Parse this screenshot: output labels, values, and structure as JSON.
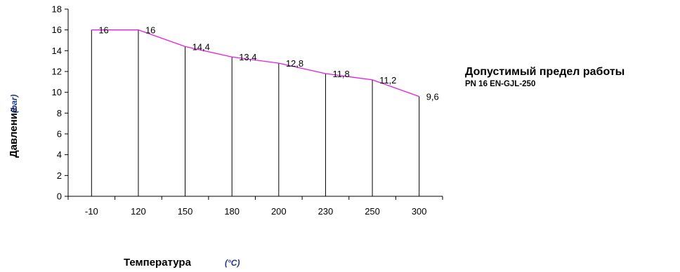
{
  "side_title": "Допустимый предел работы",
  "side_subtitle": "PN 16 EN-GJL-250",
  "chart_data": {
    "type": "line",
    "categories": [
      "-10",
      "120",
      "150",
      "180",
      "200",
      "230",
      "250",
      "300"
    ],
    "values": [
      16,
      16,
      14.4,
      13.4,
      12.8,
      11.8,
      11.2,
      9.6
    ],
    "data_labels": [
      "16",
      "16",
      "14,4",
      "13,4",
      "12,8",
      "11,8",
      "11,2",
      "9,6"
    ],
    "xlabel": "Температура",
    "xunit": "(°C)",
    "ylabel": "Давление",
    "yunit": "(bar)",
    "ylim": [
      0,
      18
    ],
    "yticks": [
      0,
      2,
      4,
      6,
      8,
      10,
      12,
      14,
      16,
      18
    ],
    "drop_lines": true,
    "grid": false,
    "line_color": "#e619e6"
  }
}
